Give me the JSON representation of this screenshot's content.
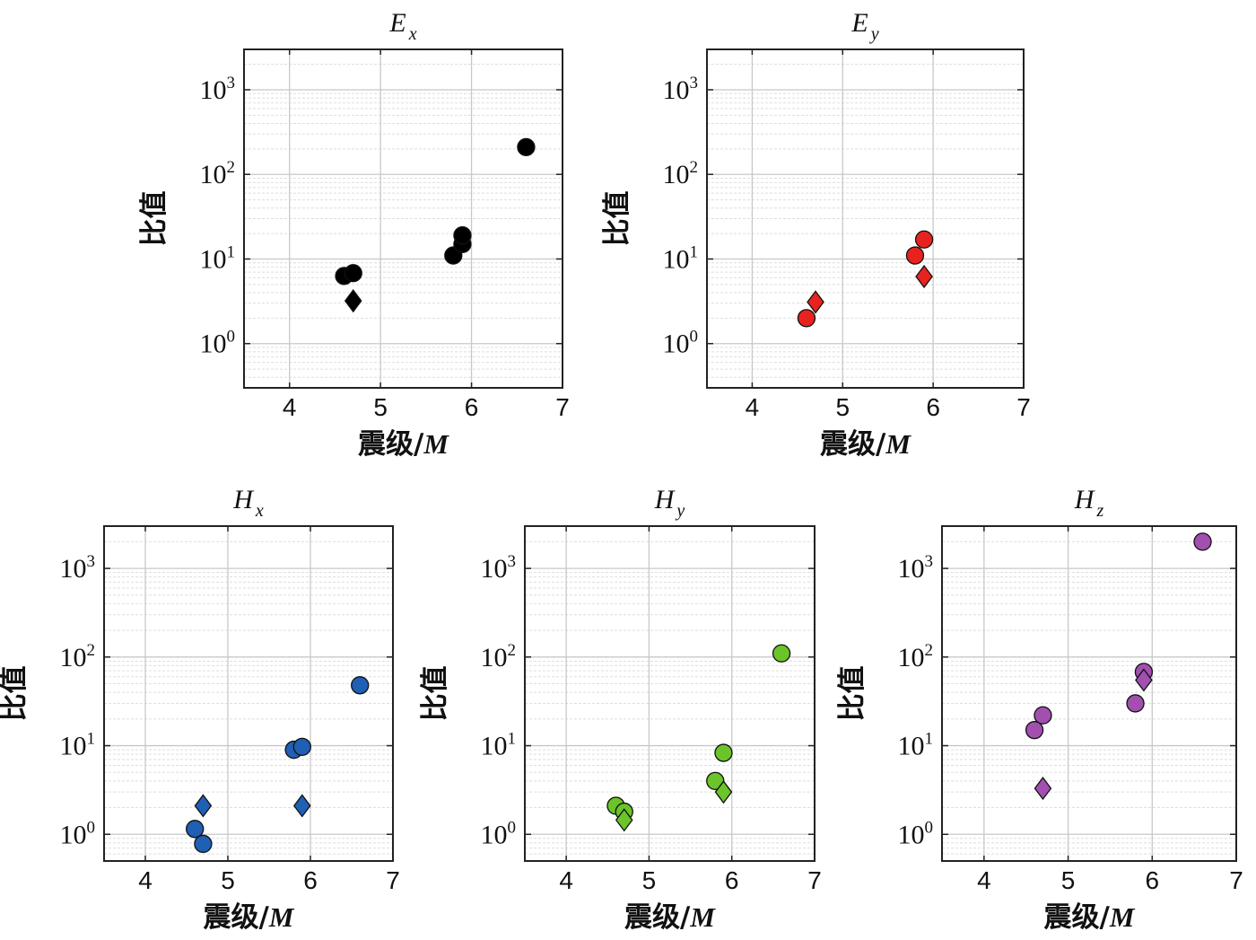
{
  "figure": {
    "charts_label": "Five scatter panels"
  },
  "chart_data": [
    {
      "type": "scatter",
      "title": "E",
      "title_sub": "x",
      "xlabel": "震级/",
      "xlabel_var": "M",
      "ylabel": "比值",
      "xlim": [
        3.5,
        7
      ],
      "ylim": [
        0.3,
        3000
      ],
      "yscale": "log",
      "xticks": [
        4,
        5,
        6,
        7
      ],
      "yticks": [
        {
          "base": "10",
          "exp": "0"
        },
        {
          "base": "10",
          "exp": "1"
        },
        {
          "base": "10",
          "exp": "2"
        },
        {
          "base": "10",
          "exp": "3"
        }
      ],
      "grid": true,
      "color": "#000000",
      "series": [
        {
          "marker": "circle",
          "points": [
            [
              4.6,
              6.3
            ],
            [
              4.7,
              6.8
            ],
            [
              5.8,
              11
            ],
            [
              5.9,
              15
            ],
            [
              5.9,
              19
            ],
            [
              6.6,
              210
            ]
          ]
        },
        {
          "marker": "diamond",
          "points": [
            [
              4.7,
              3.2
            ]
          ]
        }
      ]
    },
    {
      "type": "scatter",
      "title": "E",
      "title_sub": "y",
      "xlabel": "震级/",
      "xlabel_var": "M",
      "ylabel": "比值",
      "xlim": [
        3.5,
        7
      ],
      "ylim": [
        0.3,
        3000
      ],
      "yscale": "log",
      "xticks": [
        4,
        5,
        6,
        7
      ],
      "yticks": [
        {
          "base": "10",
          "exp": "0"
        },
        {
          "base": "10",
          "exp": "1"
        },
        {
          "base": "10",
          "exp": "2"
        },
        {
          "base": "10",
          "exp": "3"
        }
      ],
      "grid": true,
      "color": "#e8231f",
      "series": [
        {
          "marker": "circle",
          "points": [
            [
              4.6,
              2.0
            ],
            [
              5.8,
              11
            ],
            [
              5.9,
              17
            ]
          ]
        },
        {
          "marker": "diamond",
          "points": [
            [
              4.7,
              3.1
            ],
            [
              5.9,
              6.2
            ]
          ]
        }
      ]
    },
    {
      "type": "scatter",
      "title": "H",
      "title_sub": "x",
      "xlabel": "震级/",
      "xlabel_var": "M",
      "ylabel": "比值",
      "xlim": [
        3.5,
        7
      ],
      "ylim": [
        0.5,
        3000
      ],
      "yscale": "log",
      "xticks": [
        4,
        5,
        6,
        7
      ],
      "yticks": [
        {
          "base": "10",
          "exp": "0"
        },
        {
          "base": "10",
          "exp": "1"
        },
        {
          "base": "10",
          "exp": "2"
        },
        {
          "base": "10",
          "exp": "3"
        }
      ],
      "grid": true,
      "color": "#1f5fb4",
      "series": [
        {
          "marker": "circle",
          "points": [
            [
              4.6,
              1.15
            ],
            [
              4.7,
              0.78
            ],
            [
              5.8,
              9.0
            ],
            [
              5.9,
              9.7
            ],
            [
              6.6,
              48
            ]
          ]
        },
        {
          "marker": "diamond",
          "points": [
            [
              4.7,
              2.1
            ],
            [
              5.9,
              2.1
            ]
          ]
        }
      ]
    },
    {
      "type": "scatter",
      "title": "H",
      "title_sub": "y",
      "xlabel": "震级/",
      "xlabel_var": "M",
      "ylabel": "比值",
      "xlim": [
        3.5,
        7
      ],
      "ylim": [
        0.5,
        3000
      ],
      "yscale": "log",
      "xticks": [
        4,
        5,
        6,
        7
      ],
      "yticks": [
        {
          "base": "10",
          "exp": "0"
        },
        {
          "base": "10",
          "exp": "1"
        },
        {
          "base": "10",
          "exp": "2"
        },
        {
          "base": "10",
          "exp": "3"
        }
      ],
      "grid": true,
      "color": "#6ac42a",
      "series": [
        {
          "marker": "circle",
          "points": [
            [
              4.6,
              2.1
            ],
            [
              4.7,
              1.8
            ],
            [
              5.8,
              4.0
            ],
            [
              5.9,
              8.3
            ],
            [
              6.6,
              110
            ]
          ]
        },
        {
          "marker": "diamond",
          "points": [
            [
              4.7,
              1.45
            ],
            [
              5.9,
              3.0
            ]
          ]
        }
      ]
    },
    {
      "type": "scatter",
      "title": "H",
      "title_sub": "z",
      "xlabel": "震级/",
      "xlabel_var": "M",
      "ylabel": "比值",
      "xlim": [
        3.5,
        7
      ],
      "ylim": [
        0.5,
        3000
      ],
      "yscale": "log",
      "xticks": [
        4,
        5,
        6,
        7
      ],
      "yticks": [
        {
          "base": "10",
          "exp": "0"
        },
        {
          "base": "10",
          "exp": "1"
        },
        {
          "base": "10",
          "exp": "2"
        },
        {
          "base": "10",
          "exp": "3"
        }
      ],
      "grid": true,
      "color": "#a24fb0",
      "series": [
        {
          "marker": "circle",
          "points": [
            [
              4.6,
              15
            ],
            [
              4.7,
              22
            ],
            [
              5.8,
              30
            ],
            [
              5.9,
              68
            ],
            [
              6.6,
              2000
            ]
          ]
        },
        {
          "marker": "diamond",
          "points": [
            [
              4.7,
              3.3
            ],
            [
              5.9,
              55
            ]
          ]
        }
      ]
    }
  ]
}
